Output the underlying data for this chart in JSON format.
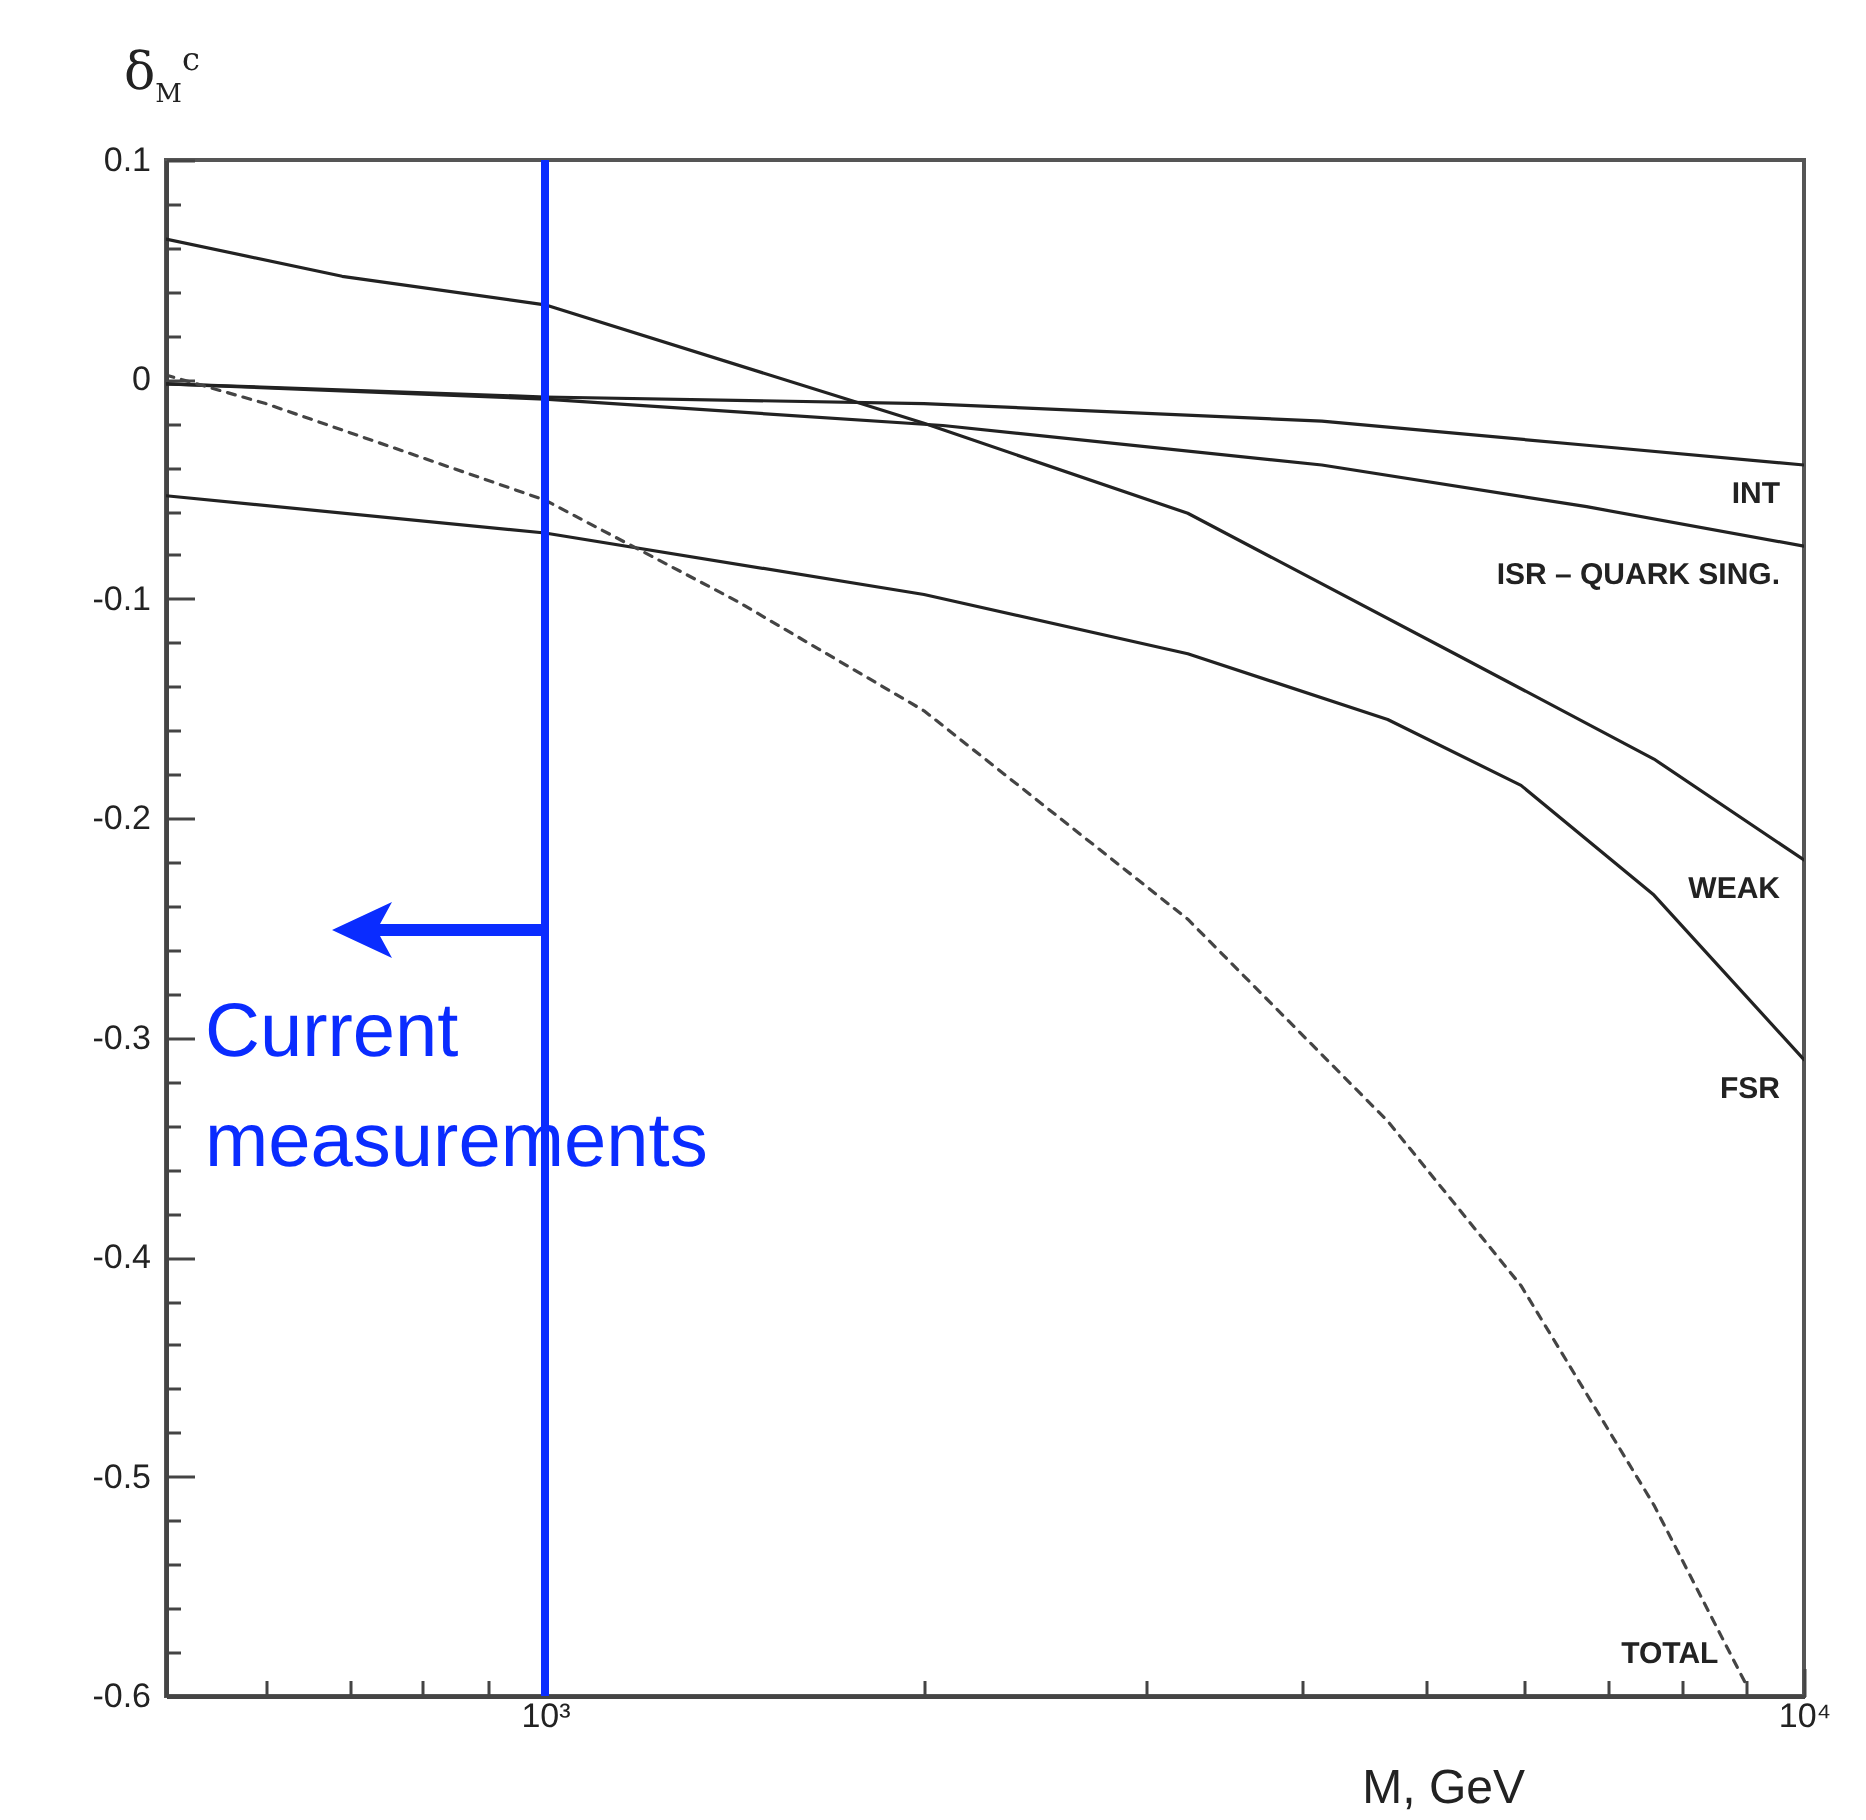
{
  "chart_data": {
    "type": "line",
    "ylabel": "δ$_{M}$$^{c}$",
    "xlabel": "M, GeV",
    "log": "x",
    "grid": false,
    "legend": false,
    "marker": "none",
    "xlim": [
      500,
      10000
    ],
    "ylim": [
      -0.6,
      0.1
    ],
    "xticks": [
      {
        "value": 600,
        "label": null
      },
      {
        "value": 700,
        "label": null
      },
      {
        "value": 800,
        "label": null
      },
      {
        "value": 900,
        "label": null
      },
      {
        "value": 1000,
        "label": "10³"
      },
      {
        "value": 2000,
        "label": null
      },
      {
        "value": 3000,
        "label": null
      },
      {
        "value": 4000,
        "label": null
      },
      {
        "value": 5000,
        "label": null
      },
      {
        "value": 6000,
        "label": null
      },
      {
        "value": 7000,
        "label": null
      },
      {
        "value": 8000,
        "label": null
      },
      {
        "value": 9000,
        "label": null
      },
      {
        "value": 10000,
        "label": "10⁴"
      }
    ],
    "yticks": [
      -0.6,
      {
        "value": -0.58,
        "label": null
      },
      {
        "value": -0.56,
        "label": null
      },
      {
        "value": -0.54,
        "label": null
      },
      {
        "value": -0.52,
        "label": null
      },
      -0.5,
      {
        "value": -0.48,
        "label": null
      },
      {
        "value": -0.46,
        "label": null
      },
      {
        "value": -0.44,
        "label": null
      },
      {
        "value": -0.42,
        "label": null
      },
      -0.4,
      {
        "value": -0.38,
        "label": null
      },
      {
        "value": -0.36,
        "label": null
      },
      {
        "value": -0.34,
        "label": null
      },
      {
        "value": -0.32,
        "label": null
      },
      -0.3,
      {
        "value": -0.28,
        "label": null
      },
      {
        "value": -0.26,
        "label": null
      },
      {
        "value": -0.24,
        "label": null
      },
      {
        "value": -0.22,
        "label": null
      },
      -0.2,
      {
        "value": -0.18,
        "label": null
      },
      {
        "value": -0.16,
        "label": null
      },
      {
        "value": -0.14,
        "label": null
      },
      {
        "value": -0.12,
        "label": null
      },
      -0.1,
      {
        "value": -0.08,
        "label": null
      },
      {
        "value": -0.06,
        "label": null
      },
      {
        "value": -0.04,
        "label": null
      },
      {
        "value": -0.02,
        "label": null
      },
      0,
      {
        "value": 0.02,
        "label": null
      },
      {
        "value": 0.04,
        "label": null
      },
      {
        "value": 0.06,
        "label": null
      },
      {
        "value": 0.08,
        "label": null
      },
      0.1
    ],
    "series": [
      {
        "name": "WEAK",
        "color": "#222222",
        "line_style": "solid",
        "x": [
          500,
          690,
          1000,
          2000,
          3240,
          5280,
          7600,
          10000
        ],
        "values": [
          0.064,
          0.047,
          0.034,
          -0.02,
          -0.061,
          -0.125,
          -0.173,
          -0.219
        ]
      },
      {
        "name": "INT",
        "color": "#222222",
        "line_style": "solid",
        "x": [
          500,
          1000,
          2000,
          4140,
          6720,
          10000
        ],
        "values": [
          -0.002,
          -0.008,
          -0.011,
          -0.019,
          -0.03,
          -0.039
        ]
      },
      {
        "name": "ISR – QUARK SING.",
        "color": "#222222",
        "line_style": "solid",
        "x": [
          500,
          1000,
          2070,
          4140,
          6720,
          10000
        ],
        "values": [
          -0.002,
          -0.009,
          -0.021,
          -0.039,
          -0.058,
          -0.076
        ]
      },
      {
        "name": "FSR",
        "color": "#222222",
        "line_style": "solid",
        "x": [
          500,
          1000,
          2000,
          3240,
          4670,
          5960,
          7600,
          10000
        ],
        "values": [
          -0.053,
          -0.07,
          -0.098,
          -0.125,
          -0.155,
          -0.185,
          -0.235,
          -0.31
        ]
      },
      {
        "name": "TOTAL",
        "color": "#444444",
        "line_style": "dashed",
        "x": [
          500,
          600,
          1000,
          1420,
          2000,
          3240,
          4670,
          5960,
          7600,
          9000
        ],
        "values": [
          0.002,
          -0.011,
          -0.055,
          -0.101,
          -0.151,
          -0.246,
          -0.338,
          -0.413,
          -0.513,
          -0.595
        ]
      }
    ],
    "ref_lines": [
      {
        "axis": "x",
        "value": 1000,
        "label": "Current measurements",
        "color": "#0a2cff",
        "line_style": "solid"
      }
    ]
  }
}
